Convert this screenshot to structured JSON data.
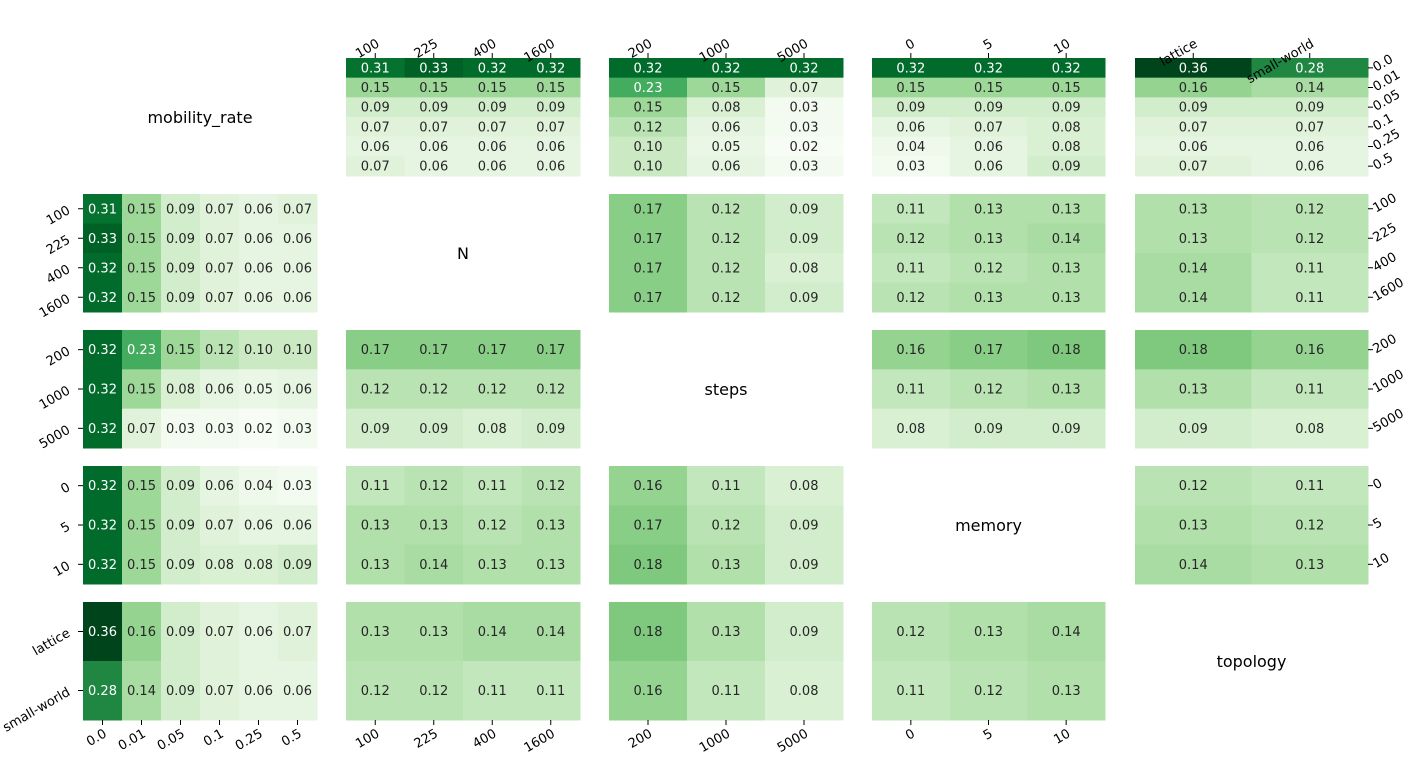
{
  "chart_data": {
    "type": "heatmap",
    "colormap": "Greens",
    "color_range": [
      0.02,
      0.36
    ],
    "variables": [
      {
        "name": "mobility_rate",
        "levels": [
          "0.0",
          "0.01",
          "0.05",
          "0.1",
          "0.25",
          "0.5"
        ]
      },
      {
        "name": "N",
        "levels": [
          "100",
          "225",
          "400",
          "1600"
        ]
      },
      {
        "name": "steps",
        "levels": [
          "200",
          "1000",
          "5000"
        ]
      },
      {
        "name": "memory",
        "levels": [
          "0",
          "5",
          "10"
        ]
      },
      {
        "name": "topology",
        "levels": [
          "lattice",
          "small-world"
        ]
      }
    ],
    "panels": [
      {
        "row": "mobility_rate",
        "col": "N",
        "values": [
          [
            0.31,
            0.33,
            0.32,
            0.32
          ],
          [
            0.15,
            0.15,
            0.15,
            0.15
          ],
          [
            0.09,
            0.09,
            0.09,
            0.09
          ],
          [
            0.07,
            0.07,
            0.07,
            0.07
          ],
          [
            0.06,
            0.06,
            0.06,
            0.06
          ],
          [
            0.07,
            0.06,
            0.06,
            0.06
          ]
        ]
      },
      {
        "row": "mobility_rate",
        "col": "steps",
        "values": [
          [
            0.32,
            0.32,
            0.32
          ],
          [
            0.23,
            0.15,
            0.07
          ],
          [
            0.15,
            0.08,
            0.03
          ],
          [
            0.12,
            0.06,
            0.03
          ],
          [
            0.1,
            0.05,
            0.02
          ],
          [
            0.1,
            0.06,
            0.03
          ]
        ]
      },
      {
        "row": "mobility_rate",
        "col": "memory",
        "values": [
          [
            0.32,
            0.32,
            0.32
          ],
          [
            0.15,
            0.15,
            0.15
          ],
          [
            0.09,
            0.09,
            0.09
          ],
          [
            0.06,
            0.07,
            0.08
          ],
          [
            0.04,
            0.06,
            0.08
          ],
          [
            0.03,
            0.06,
            0.09
          ]
        ]
      },
      {
        "row": "mobility_rate",
        "col": "topology",
        "values": [
          [
            0.36,
            0.28
          ],
          [
            0.16,
            0.14
          ],
          [
            0.09,
            0.09
          ],
          [
            0.07,
            0.07
          ],
          [
            0.06,
            0.06
          ],
          [
            0.07,
            0.06
          ]
        ]
      },
      {
        "row": "N",
        "col": "mobility_rate",
        "values": [
          [
            0.31,
            0.15,
            0.09,
            0.07,
            0.06,
            0.07
          ],
          [
            0.33,
            0.15,
            0.09,
            0.07,
            0.06,
            0.06
          ],
          [
            0.32,
            0.15,
            0.09,
            0.07,
            0.06,
            0.06
          ],
          [
            0.32,
            0.15,
            0.09,
            0.07,
            0.06,
            0.06
          ]
        ]
      },
      {
        "row": "N",
        "col": "steps",
        "values": [
          [
            0.17,
            0.12,
            0.09
          ],
          [
            0.17,
            0.12,
            0.09
          ],
          [
            0.17,
            0.12,
            0.08
          ],
          [
            0.17,
            0.12,
            0.09
          ]
        ]
      },
      {
        "row": "N",
        "col": "memory",
        "values": [
          [
            0.11,
            0.13,
            0.13
          ],
          [
            0.12,
            0.13,
            0.14
          ],
          [
            0.11,
            0.12,
            0.13
          ],
          [
            0.12,
            0.13,
            0.13
          ]
        ]
      },
      {
        "row": "N",
        "col": "topology",
        "values": [
          [
            0.13,
            0.12
          ],
          [
            0.13,
            0.12
          ],
          [
            0.14,
            0.11
          ],
          [
            0.14,
            0.11
          ]
        ]
      },
      {
        "row": "steps",
        "col": "mobility_rate",
        "values": [
          [
            0.32,
            0.23,
            0.15,
            0.12,
            0.1,
            0.1
          ],
          [
            0.32,
            0.15,
            0.08,
            0.06,
            0.05,
            0.06
          ],
          [
            0.32,
            0.07,
            0.03,
            0.03,
            0.02,
            0.03
          ]
        ]
      },
      {
        "row": "steps",
        "col": "N",
        "values": [
          [
            0.17,
            0.17,
            0.17,
            0.17
          ],
          [
            0.12,
            0.12,
            0.12,
            0.12
          ],
          [
            0.09,
            0.09,
            0.08,
            0.09
          ]
        ]
      },
      {
        "row": "steps",
        "col": "memory",
        "values": [
          [
            0.16,
            0.17,
            0.18
          ],
          [
            0.11,
            0.12,
            0.13
          ],
          [
            0.08,
            0.09,
            0.09
          ]
        ]
      },
      {
        "row": "steps",
        "col": "topology",
        "values": [
          [
            0.18,
            0.16
          ],
          [
            0.13,
            0.11
          ],
          [
            0.09,
            0.08
          ]
        ]
      },
      {
        "row": "memory",
        "col": "mobility_rate",
        "values": [
          [
            0.32,
            0.15,
            0.09,
            0.06,
            0.04,
            0.03
          ],
          [
            0.32,
            0.15,
            0.09,
            0.07,
            0.06,
            0.06
          ],
          [
            0.32,
            0.15,
            0.09,
            0.08,
            0.08,
            0.09
          ]
        ]
      },
      {
        "row": "memory",
        "col": "N",
        "values": [
          [
            0.11,
            0.12,
            0.11,
            0.12
          ],
          [
            0.13,
            0.13,
            0.12,
            0.13
          ],
          [
            0.13,
            0.14,
            0.13,
            0.13
          ]
        ]
      },
      {
        "row": "memory",
        "col": "steps",
        "values": [
          [
            0.16,
            0.11,
            0.08
          ],
          [
            0.17,
            0.12,
            0.09
          ],
          [
            0.18,
            0.13,
            0.09
          ]
        ]
      },
      {
        "row": "memory",
        "col": "topology",
        "values": [
          [
            0.12,
            0.11
          ],
          [
            0.13,
            0.12
          ],
          [
            0.14,
            0.13
          ]
        ]
      },
      {
        "row": "topology",
        "col": "mobility_rate",
        "values": [
          [
            0.36,
            0.16,
            0.09,
            0.07,
            0.06,
            0.07
          ],
          [
            0.28,
            0.14,
            0.09,
            0.07,
            0.06,
            0.06
          ]
        ]
      },
      {
        "row": "topology",
        "col": "N",
        "values": [
          [
            0.13,
            0.13,
            0.14,
            0.14
          ],
          [
            0.12,
            0.12,
            0.11,
            0.11
          ]
        ]
      },
      {
        "row": "topology",
        "col": "steps",
        "values": [
          [
            0.18,
            0.13,
            0.09
          ],
          [
            0.16,
            0.11,
            0.08
          ]
        ]
      },
      {
        "row": "topology",
        "col": "memory",
        "values": [
          [
            0.12,
            0.13,
            0.14
          ],
          [
            0.11,
            0.12,
            0.13
          ]
        ]
      }
    ]
  }
}
